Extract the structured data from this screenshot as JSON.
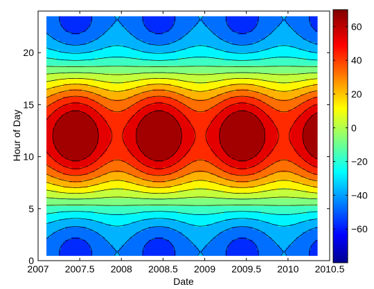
{
  "chart_data": {
    "type": "heatmap",
    "subtype": "filled-contour",
    "title": "",
    "xlabel": "Date",
    "ylabel": "Hour of Day",
    "xlim": [
      2007,
      2010.5
    ],
    "ylim": [
      0,
      24
    ],
    "data_extent": {
      "x": [
        2007.1,
        2010.35
      ],
      "y": [
        0.5,
        23.5
      ]
    },
    "xticks": [
      2007,
      2007.5,
      2008,
      2008.5,
      2009,
      2009.5,
      2010,
      2010.5
    ],
    "xtick_labels": [
      "2007",
      "2007.5",
      "2008",
      "2008.5",
      "2009",
      "2009.5",
      "2010",
      "2010.5"
    ],
    "yticks": [
      0,
      5,
      10,
      15,
      20
    ],
    "ytick_labels": [
      "0",
      "5",
      "10",
      "15",
      "20"
    ],
    "colorbar": {
      "range": [
        -80,
        70
      ],
      "ticks": [
        -60,
        -40,
        -20,
        0,
        20,
        40,
        60
      ],
      "tick_labels": [
        "−60",
        "−40",
        "−20",
        "0",
        "20",
        "40",
        "60"
      ],
      "colormap": "jet",
      "position": "right"
    },
    "contour_levels": [
      -70,
      -60,
      -50,
      -40,
      -30,
      -20,
      -10,
      0,
      10,
      20,
      30,
      40,
      50,
      60
    ],
    "field": {
      "description_of_pattern": "value peaks near hour 12 and is lowest near hours 0/24; noon peak strongest near mid-year (2007.45, 2008.45, 2009.45, 2010.4), night minimum deepest at the same dates",
      "noon_peak_dates": [
        2007.45,
        2008.45,
        2009.45,
        2010.4
      ],
      "max_value": 68,
      "min_value": -75
    },
    "grid": false
  }
}
